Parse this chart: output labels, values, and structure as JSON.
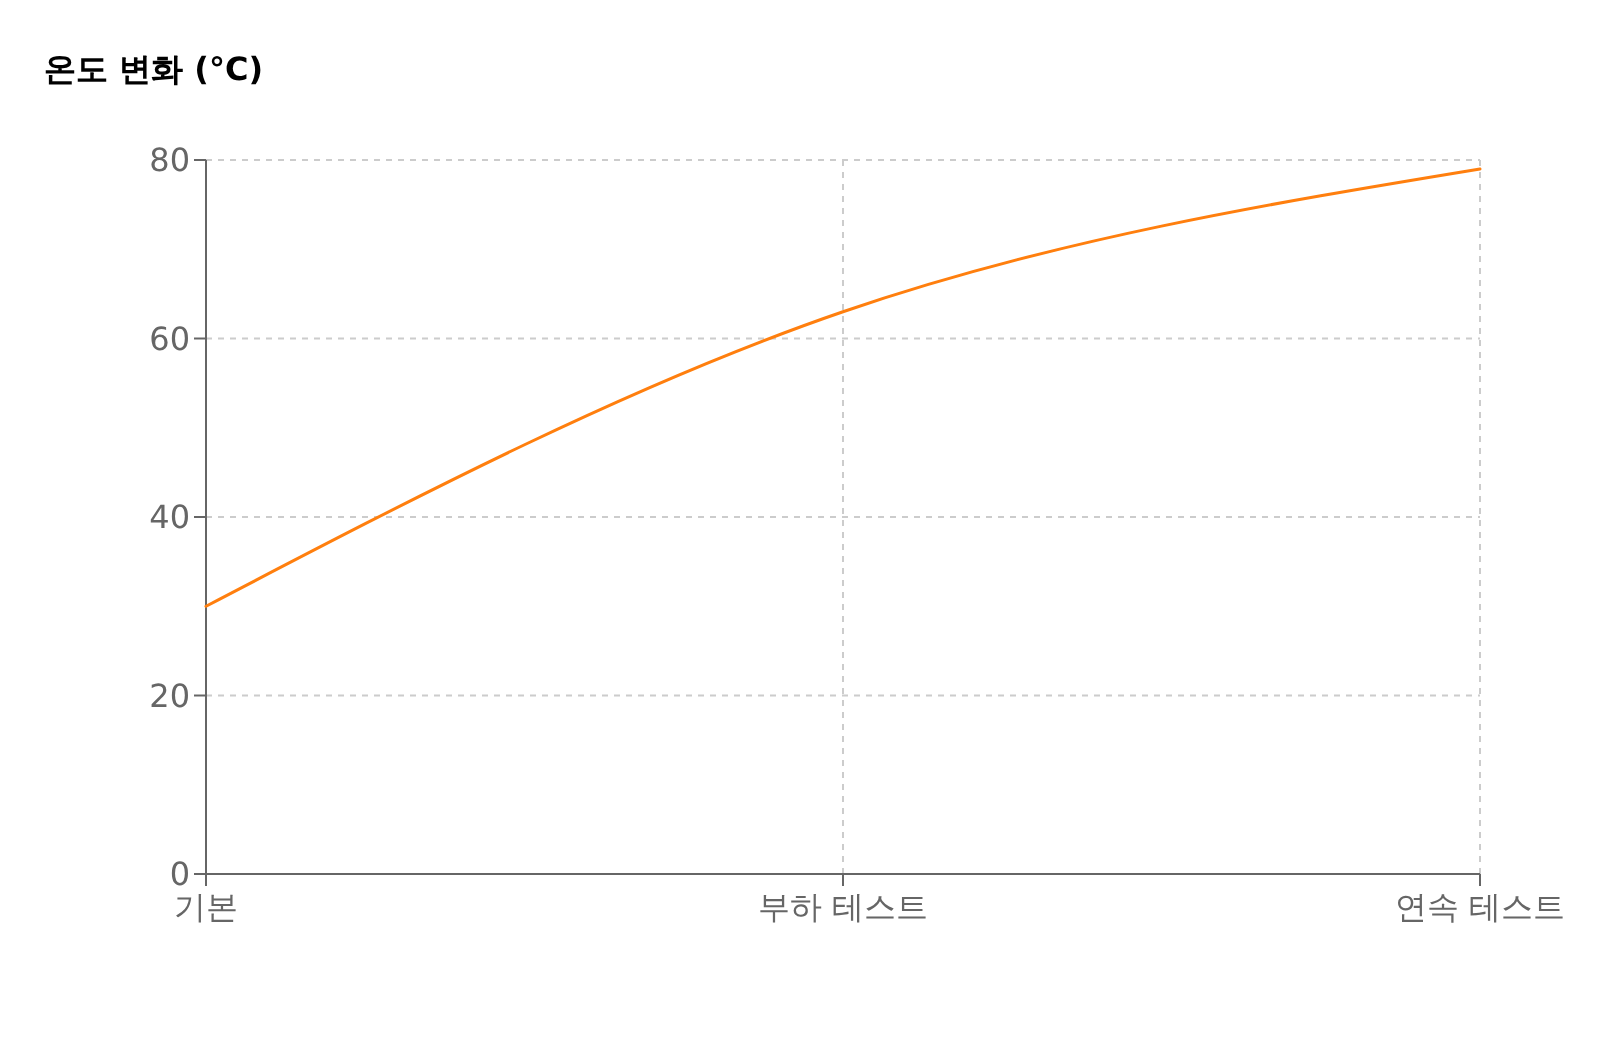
{
  "chart_data": {
    "type": "line",
    "title": "온도 변화 (°C)",
    "categories": [
      "기본",
      "부하 테스트",
      "연속 테스트"
    ],
    "series": [
      {
        "color": "#ff7f0e",
        "values": [
          30,
          63,
          79
        ]
      }
    ],
    "ylim": [
      0,
      80
    ],
    "yticks": [
      0,
      20,
      40,
      60,
      80
    ],
    "grid": true,
    "line_style": "solid",
    "marker": "none"
  }
}
